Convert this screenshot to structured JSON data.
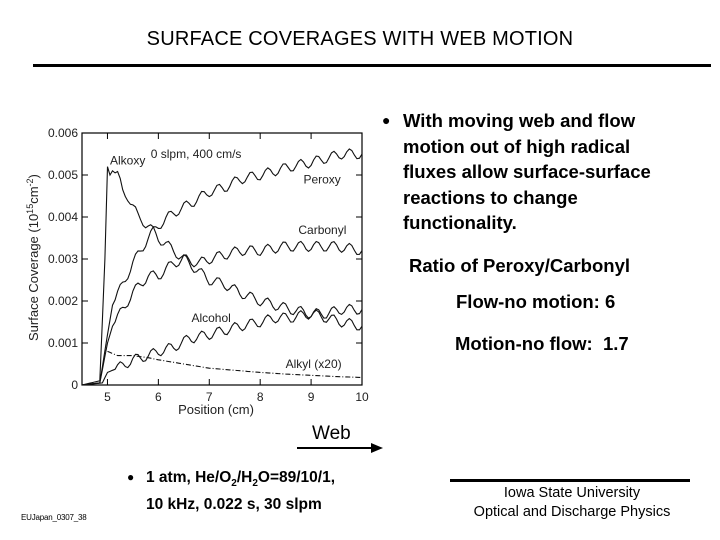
{
  "slide": {
    "title": "SURFACE COVERAGES WITH WEB MOTION",
    "bullet_main": "With moving web and flow\nmotion out of high radical\nfluxes allow surface-surface\nreactions to change\nfunctionality.",
    "bullet_symbol": "●",
    "ratio_title": "Ratio of Peroxy/Carbonyl",
    "ratio_flow_no_motion": "Flow-no motion: 6",
    "ratio_motion_no_flow": "Motion-no flow:  1.7",
    "web_label": "Web",
    "conditions_line1_prefix": "1 atm, He/O",
    "conditions_sub1": "2",
    "conditions_mid": "/H",
    "conditions_sub2": "2",
    "conditions_line1_suffix": "O=89/10/1,",
    "conditions_line2": "10 kHz, 0.022 s, 30 slpm",
    "footer_id": "EUJapan_0307_38",
    "institution_line1": "Iowa State University",
    "institution_line2": "Optical and Discharge Physics"
  },
  "chart_data": {
    "type": "line",
    "title": "",
    "annotation": "0 slpm, 400 cm/s",
    "xlabel": "Position (cm)",
    "ylabel": "Surface Coverage (10^15 cm^-2)",
    "ylabel_main": "Surface Coverage (10",
    "ylabel_sup1": "15",
    "ylabel_mid": "cm",
    "ylabel_sup2": "-2",
    "ylabel_end": ")",
    "xlim": [
      4.5,
      10
    ],
    "ylim": [
      0,
      0.006
    ],
    "xticks": [
      5,
      6,
      7,
      8,
      9,
      10
    ],
    "xtick_labels": [
      "5",
      "6",
      "7",
      "8",
      "9",
      "10"
    ],
    "yticks": [
      0,
      0.001,
      0.002,
      0.003,
      0.004,
      0.005,
      0.006
    ],
    "ytick_labels": [
      "0",
      "0.001",
      "0.002",
      "0.003",
      "0.004",
      "0.005",
      "0.006"
    ],
    "grid": false,
    "legend": "inline labels",
    "series": [
      {
        "name": "Alkoxy",
        "style": "solid",
        "label_pos": [
          5.05,
          0.00525
        ],
        "x": [
          4.5,
          4.85,
          4.95,
          5.0,
          5.05,
          5.1,
          5.2,
          5.3,
          5.4,
          5.6,
          5.8,
          6.0,
          6.2,
          6.5,
          6.8,
          7.0,
          7.3,
          7.6,
          8.0,
          8.3,
          8.6,
          9.0,
          9.3,
          9.6,
          10.0
        ],
        "y": [
          0,
          0.0001,
          0.003,
          0.0052,
          0.005,
          0.0051,
          0.005,
          0.0046,
          0.0045,
          0.004,
          0.0038,
          0.0035,
          0.0033,
          0.003,
          0.0027,
          0.0025,
          0.0024,
          0.0022,
          0.002,
          0.0019,
          0.0018,
          0.0017,
          0.0016,
          0.0015,
          0.0014
        ]
      },
      {
        "name": "Peroxy",
        "style": "solid",
        "label_pos": [
          8.85,
          0.0048
        ],
        "x": [
          4.5,
          4.85,
          5.0,
          5.1,
          5.3,
          5.5,
          5.8,
          6.0,
          6.3,
          6.6,
          7.0,
          7.3,
          7.6,
          8.0,
          8.3,
          8.6,
          9.0,
          9.3,
          9.6,
          10.0
        ],
        "y": [
          0,
          5e-05,
          0.0012,
          0.0019,
          0.0024,
          0.0029,
          0.0035,
          0.0038,
          0.0041,
          0.0043,
          0.0046,
          0.0047,
          0.0049,
          0.005,
          0.0051,
          0.0052,
          0.0053,
          0.0054,
          0.0055,
          0.0055
        ]
      },
      {
        "name": "Carbonyl",
        "style": "solid",
        "label_pos": [
          8.75,
          0.0036
        ],
        "x": [
          4.5,
          4.85,
          5.0,
          5.1,
          5.3,
          5.5,
          5.8,
          6.0,
          6.3,
          6.5,
          6.8,
          7.0,
          7.3,
          7.6,
          8.0,
          8.5,
          9.0,
          9.5,
          10.0
        ],
        "y": [
          0,
          5e-05,
          0.001,
          0.0014,
          0.0018,
          0.0022,
          0.0026,
          0.0026,
          0.0029,
          0.003,
          0.0029,
          0.003,
          0.0031,
          0.0032,
          0.0032,
          0.0033,
          0.0033,
          0.0033,
          0.0032
        ]
      },
      {
        "name": "Alcohol",
        "style": "solid",
        "label_pos": [
          6.65,
          0.0015
        ],
        "x": [
          4.5,
          4.9,
          5.0,
          5.2,
          5.5,
          5.8,
          6.0,
          6.3,
          6.6,
          7.0,
          7.3,
          7.6,
          8.0,
          8.3,
          8.6,
          9.0,
          9.3,
          9.6,
          10.0
        ],
        "y": [
          0,
          5e-05,
          0.0003,
          0.0004,
          0.0006,
          0.0007,
          0.0008,
          0.0009,
          0.0011,
          0.0012,
          0.0013,
          0.0014,
          0.0015,
          0.0016,
          0.0016,
          0.0017,
          0.0017,
          0.0018,
          0.0018
        ]
      },
      {
        "name": "Alkyl (x20)",
        "style": "dashdot",
        "label_pos": [
          8.5,
          0.0004
        ],
        "x": [
          5.0,
          5.2,
          5.5,
          5.8,
          6.0,
          6.5,
          7.0,
          7.5,
          8.0,
          8.5,
          9.0,
          9.5,
          10.0
        ],
        "y": [
          0.0008,
          0.0007,
          0.0007,
          0.00065,
          0.0006,
          0.0005,
          0.0004,
          0.00035,
          0.0003,
          0.00026,
          0.00023,
          0.0002,
          0.00018
        ]
      }
    ]
  }
}
